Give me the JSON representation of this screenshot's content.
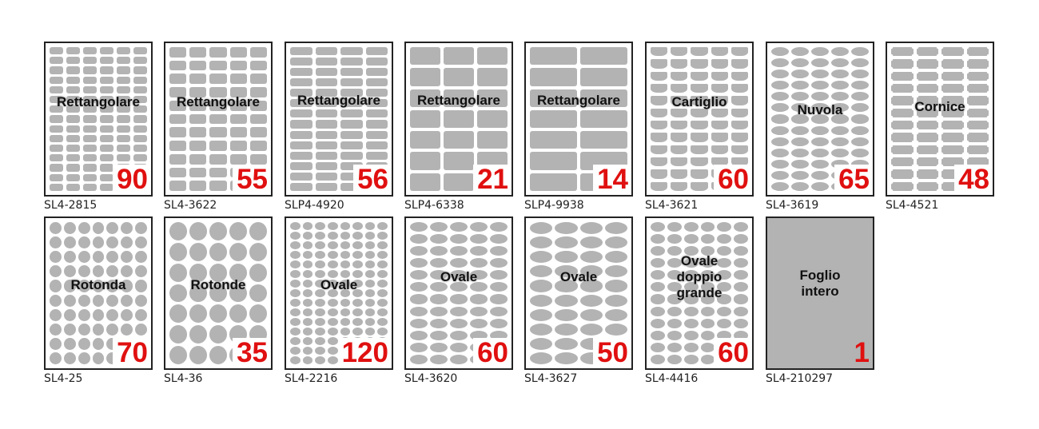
{
  "sheets": [
    {
      "code": "SL4-2815",
      "shape": "Rettangolare",
      "count": "90"
    },
    {
      "code": "SL4-3622",
      "shape": "Rettangolare",
      "count": "55"
    },
    {
      "code": "SLP4-4920",
      "shape": "Rettangolare",
      "count": "56"
    },
    {
      "code": "SLP4-6338",
      "shape": "Rettangolare",
      "count": "21"
    },
    {
      "code": "SLP4-9938",
      "shape": "Rettangolare",
      "count": "14"
    },
    {
      "code": "SL4-3621",
      "shape": "Cartiglio",
      "count": "60"
    },
    {
      "code": "SL4-3619",
      "shape": "Nuvola",
      "count": "65"
    },
    {
      "code": "SL4-4521",
      "shape": "Cornice",
      "count": "48"
    },
    {
      "code": "SL4-25",
      "shape": "Rotonda",
      "count": "70"
    },
    {
      "code": "SL4-36",
      "shape": "Rotonde",
      "count": "35"
    },
    {
      "code": "SL4-2216",
      "shape": "Ovale",
      "count": "120"
    },
    {
      "code": "SL4-3620",
      "shape": "Ovale",
      "count": "60"
    },
    {
      "code": "SL4-3627",
      "shape": "Ovale",
      "count": "50"
    },
    {
      "code": "SL4-4416",
      "shape": "Ovale\ndoppio\ngrande",
      "count": "60"
    },
    {
      "code": "SL4-210297",
      "shape": "Foglio\nintero",
      "count": "1"
    }
  ],
  "colors": {
    "label_fill": "#b3b3b3",
    "count_text": "#e01010",
    "border": "#222222"
  }
}
